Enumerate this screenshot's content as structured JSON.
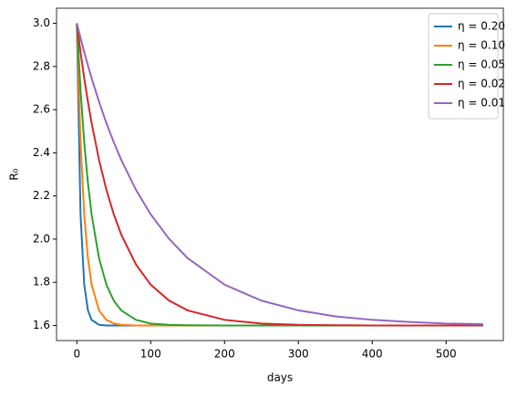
{
  "chart_data": {
    "type": "line",
    "x_label": "days",
    "y_label": "R₀",
    "x": [
      0,
      5,
      10,
      15,
      20,
      30,
      40,
      50,
      60,
      80,
      100,
      125,
      150,
      200,
      250,
      300,
      350,
      400,
      450,
      500,
      550
    ],
    "series": [
      {
        "name": "η = 0.20",
        "color": "#1f77b4",
        "values": [
          3.0,
          2.115,
          1.789,
          1.67,
          1.626,
          1.603,
          1.6,
          1.6,
          1.6,
          1.6,
          1.6,
          1.6,
          1.6,
          1.6,
          1.6,
          1.6,
          1.6,
          1.6,
          1.6,
          1.6,
          1.6
        ]
      },
      {
        "name": "η = 0.10",
        "color": "#ff7f0e",
        "values": [
          3.0,
          2.449,
          2.115,
          1.912,
          1.789,
          1.67,
          1.626,
          1.609,
          1.603,
          1.6,
          1.6,
          1.6,
          1.6,
          1.6,
          1.6,
          1.6,
          1.6,
          1.6,
          1.6,
          1.6,
          1.6
        ]
      },
      {
        "name": "η = 0.05",
        "color": "#2ca02c",
        "values": [
          3.0,
          2.69,
          2.449,
          2.261,
          2.115,
          1.912,
          1.789,
          1.715,
          1.67,
          1.626,
          1.609,
          1.603,
          1.601,
          1.6,
          1.6,
          1.6,
          1.6,
          1.6,
          1.6,
          1.6,
          1.6
        ]
      },
      {
        "name": "η = 0.02",
        "color": "#d62728",
        "values": [
          3.0,
          2.867,
          2.746,
          2.637,
          2.538,
          2.368,
          2.229,
          2.115,
          2.022,
          1.883,
          1.789,
          1.715,
          1.67,
          1.626,
          1.609,
          1.603,
          1.601,
          1.6,
          1.6,
          1.6,
          1.6
        ]
      },
      {
        "name": "η = 0.01",
        "color": "#9467bd",
        "values": [
          3.0,
          2.932,
          2.867,
          2.805,
          2.746,
          2.637,
          2.538,
          2.449,
          2.368,
          2.229,
          2.115,
          2.001,
          1.912,
          1.789,
          1.715,
          1.67,
          1.642,
          1.626,
          1.616,
          1.609,
          1.606
        ]
      }
    ],
    "xlim": [
      -27.5,
      577.5
    ],
    "xticks": [
      0,
      100,
      200,
      300,
      400,
      500
    ],
    "ylim": [
      1.53,
      3.07
    ],
    "yticks": [
      {
        "value": 1.6,
        "label": "1.6"
      },
      {
        "value": 1.8,
        "label": "1.8"
      },
      {
        "value": 2.0,
        "label": "2.0"
      },
      {
        "value": 2.2,
        "label": "2.2"
      },
      {
        "value": 2.4,
        "label": "2.4"
      },
      {
        "value": 2.6,
        "label": "2.6"
      },
      {
        "value": 2.8,
        "label": "2.8"
      },
      {
        "value": 3.0,
        "label": "3.0"
      }
    ],
    "grid": false,
    "legend": "upper right"
  }
}
